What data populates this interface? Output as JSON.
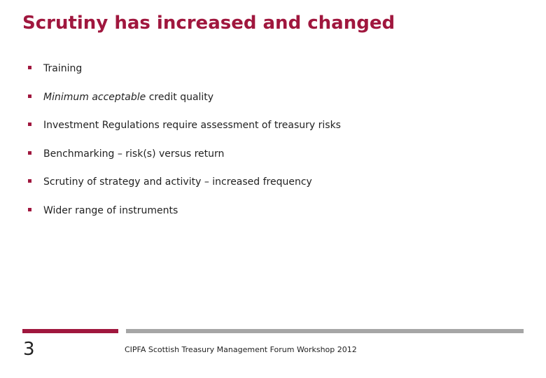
{
  "slide": {
    "title": "Scrutiny has increased and changed",
    "bullets": [
      {
        "text": "Training"
      },
      {
        "text_italic": "Minimum acceptable",
        "text": " credit quality"
      },
      {
        "text": "Investment Regulations require assessment of treasury risks"
      },
      {
        "text": "Benchmarking – risk(s) versus return"
      },
      {
        "text": "Scrutiny of strategy and activity – increased frequency"
      },
      {
        "text": "Wider range of instruments"
      }
    ]
  },
  "footer": {
    "page_number": "3",
    "text": "CIPFA Scottish Treasury Management Forum Workshop 2012"
  },
  "colors": {
    "title": "#A0173E",
    "bullet_marker": "#A0173E",
    "accent_bar": "#A0173E",
    "secondary_bar": "#A6A6A6"
  }
}
